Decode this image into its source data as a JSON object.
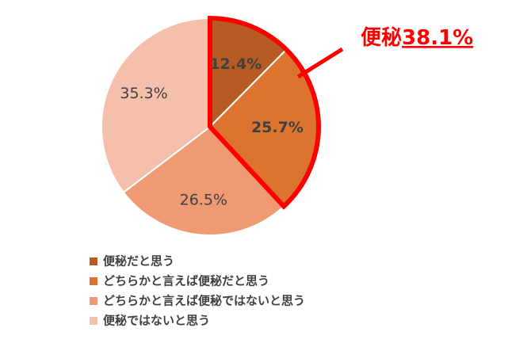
{
  "chart_data": {
    "type": "pie",
    "categories": [
      "便秘だと思う",
      "どちらかと言えば便秘だと思う",
      "どちらかと言えば便秘ではないと思う",
      "便秘ではないと思う"
    ],
    "values": [
      12.4,
      25.7,
      26.5,
      35.3
    ],
    "value_labels": [
      "12.4%",
      "25.7%",
      "26.5%",
      "35.3%"
    ],
    "colors": [
      "#b75b24",
      "#dc7430",
      "#ef9a72",
      "#f4c0ab"
    ],
    "annotation": {
      "label": "便秘",
      "value": 38.1,
      "value_label": "38.1%",
      "color": "#ff0000"
    }
  }
}
